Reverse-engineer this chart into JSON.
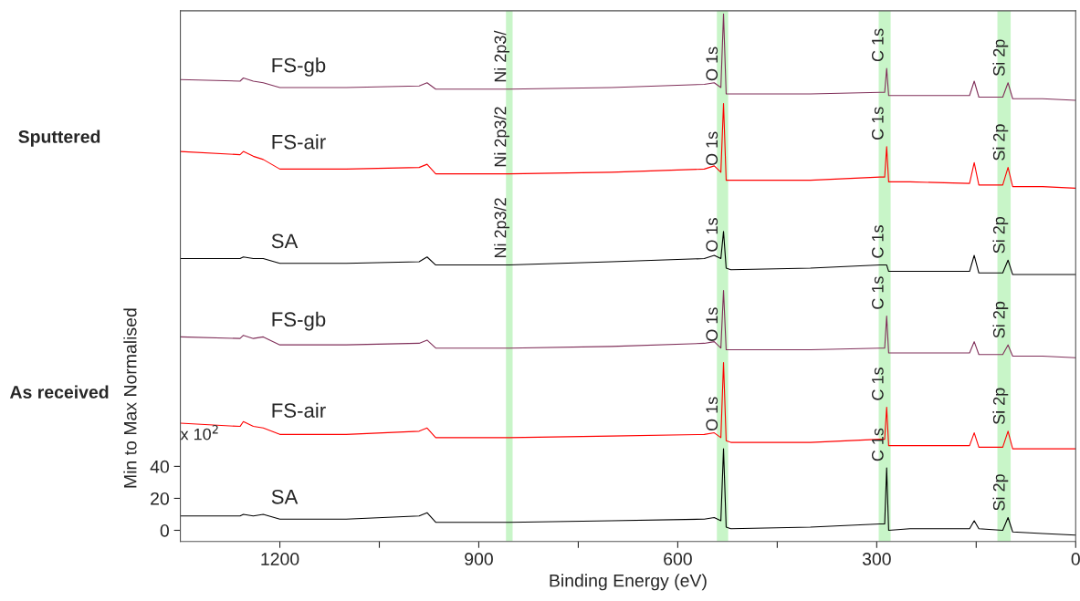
{
  "chart_data": {
    "type": "line",
    "xlabel": "Binding Energy (eV)",
    "ylabel": "Min to Max Normalised",
    "x": [
      1350,
      1260,
      1255,
      1240,
      1225,
      1200,
      1100,
      990,
      978,
      965,
      900,
      854,
      700,
      560,
      545,
      535,
      531,
      527,
      520,
      400,
      295,
      288,
      285,
      282,
      250,
      160,
      153,
      146,
      110,
      102,
      95,
      50,
      0
    ],
    "xlim": [
      1350,
      0
    ],
    "xticks": [
      1200,
      {
        "value": 1050,
        "label": null
      },
      900,
      {
        "value": 750,
        "label": null
      },
      600,
      {
        "value": 450,
        "label": null
      },
      300,
      {
        "value": 150,
        "label": null
      },
      0
    ],
    "ylim": [
      -7,
      325
    ],
    "yticks": [
      0,
      20,
      40
    ],
    "grid": false,
    "legend": false,
    "series": [
      {
        "name": "SA",
        "color": "#000000",
        "values": [
          9,
          9,
          10,
          9,
          10,
          7,
          7,
          9,
          11,
          5,
          5,
          5,
          6,
          7,
          8,
          6,
          51,
          2,
          1,
          2,
          4,
          4,
          39,
          0,
          1,
          1,
          6,
          1,
          0,
          8,
          -1,
          -2,
          -3
        ]
      },
      {
        "name": "FS-air",
        "color": "#ff0000",
        "values": [
          67,
          65,
          68,
          65,
          64,
          60,
          60,
          62,
          64,
          58,
          58,
          58,
          59,
          60,
          61,
          58,
          105,
          56,
          55,
          55,
          57,
          57,
          77,
          53,
          53,
          53,
          61,
          52,
          52,
          62,
          51,
          51,
          51
        ]
      },
      {
        "name": "FS-gb",
        "color": "#80305a",
        "values": [
          121,
          120,
          122,
          120,
          121,
          116,
          116,
          117,
          119,
          114,
          114,
          114,
          115,
          117,
          118,
          114,
          150,
          113,
          113,
          113,
          114,
          114,
          134,
          111,
          111,
          111,
          118,
          110,
          110,
          116,
          109,
          109,
          108
        ]
      },
      {
        "name": "SA",
        "color": "#000000",
        "values": [
          170,
          170,
          171,
          170,
          170,
          167,
          167,
          168,
          171,
          166,
          166,
          166,
          168,
          170,
          172,
          170,
          187,
          164,
          163,
          164,
          166,
          166,
          166,
          162,
          162,
          162,
          172,
          161,
          161,
          169,
          160,
          160,
          160
        ]
      },
      {
        "name": "FS-air",
        "color": "#ff0000",
        "values": [
          237,
          235,
          237,
          234,
          232,
          226,
          226,
          227,
          229,
          223,
          223,
          223,
          224,
          226,
          228,
          224,
          267,
          219,
          219,
          219,
          221,
          221,
          240,
          218,
          218,
          217,
          230,
          216,
          216,
          227,
          215,
          215,
          214
        ]
      },
      {
        "name": "FS-gb",
        "color": "#80305a",
        "values": [
          282,
          281,
          283,
          281,
          280,
          277,
          277,
          278,
          280,
          276,
          276,
          276,
          277,
          279,
          280,
          277,
          323,
          273,
          273,
          273,
          274,
          274,
          289,
          272,
          272,
          272,
          281,
          271,
          271,
          280,
          270,
          270,
          269
        ]
      }
    ],
    "bands": [
      {
        "axis": "x",
        "from": 541,
        "to": 524,
        "color": "#c8f5c8"
      },
      {
        "axis": "x",
        "from": 297,
        "to": 279,
        "color": "#c8f5c8"
      },
      {
        "axis": "x",
        "from": 118,
        "to": 98,
        "color": "#c8f5c8"
      },
      {
        "axis": "x",
        "from": 859,
        "to": 849,
        "color": "#c8f5c8"
      }
    ],
    "annotations": [
      {
        "text": "O 1s",
        "x": 535,
        "y": 277
      },
      {
        "text": "O 1s",
        "x": 535,
        "y": 224
      },
      {
        "text": "O 1s",
        "x": 535,
        "y": 170
      },
      {
        "text": "O 1s",
        "x": 535,
        "y": 114
      },
      {
        "text": "O 1s",
        "x": 535,
        "y": 58
      },
      {
        "text": "C 1s",
        "x": 285,
        "y": 289
      },
      {
        "text": "C 1s",
        "x": 285,
        "y": 240
      },
      {
        "text": "C 1s",
        "x": 285,
        "y": 166
      },
      {
        "text": "C 1s",
        "x": 285,
        "y": 134
      },
      {
        "text": "C 1s",
        "x": 285,
        "y": 77
      },
      {
        "text": "C 1s",
        "x": 285,
        "y": 39
      },
      {
        "text": "Si 2p",
        "x": 102,
        "y": 280
      },
      {
        "text": "Si 2p",
        "x": 102,
        "y": 227
      },
      {
        "text": "Si 2p",
        "x": 102,
        "y": 169
      },
      {
        "text": "Si 2p",
        "x": 102,
        "y": 116
      },
      {
        "text": "Si 2p",
        "x": 102,
        "y": 62
      },
      {
        "text": "Si 2p",
        "x": 102,
        "y": 8
      },
      {
        "text": "Ni 2p3/",
        "x": 854,
        "y": 276
      },
      {
        "text": "Ni 2p3/2",
        "x": 854,
        "y": 223
      },
      {
        "text": "Ni 2p3/2",
        "x": 854,
        "y": 166
      },
      "x 10$^{2}$",
      "Sputtered",
      "As received"
    ]
  }
}
